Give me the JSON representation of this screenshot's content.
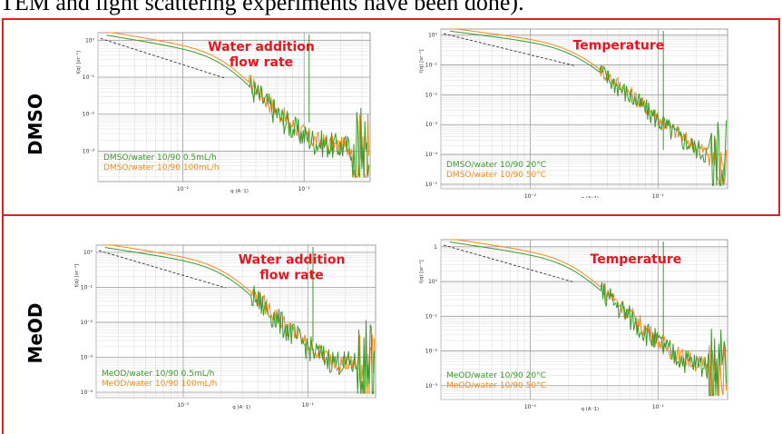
{
  "caption_fragment": "TEM and light scattering experiments have been done).",
  "rows": [
    {
      "label": "DMSO"
    },
    {
      "label": "MeOD"
    }
  ],
  "colors": {
    "green": "#3a9b2a",
    "orange": "#f28a1c",
    "red_text": "#e8141e",
    "frame_red": "#e02020"
  },
  "chart_data": [
    {
      "type": "line",
      "scale": "log-log",
      "annotation": [
        "Water addition",
        "flow rate"
      ],
      "ylabel": "I(q) [sr⁻¹]",
      "xlabel": "q (A⁻1)",
      "xticks": [
        "10⁻²",
        "10⁻¹"
      ],
      "yticks": [
        "10⁰",
        "10⁻¹",
        "10⁻²",
        "10⁻³"
      ],
      "xlim": [
        0.002,
        0.35
      ],
      "ylim": [
        0.00015,
        1.6
      ],
      "grid": true,
      "legend": "bottom-left",
      "series": [
        {
          "name": "DMSO/water 10/90 0.5mL/h",
          "color": "green"
        },
        {
          "name": "DMSO/water 10/90 100mL/h",
          "color": "orange"
        }
      ]
    },
    {
      "type": "line",
      "scale": "log-log",
      "annotation": [
        "Temperature"
      ],
      "ylabel": "I(q) [sr⁻¹]",
      "xlabel": "q (A⁻1)",
      "xticks": [
        "10⁻²",
        "10⁻¹"
      ],
      "yticks": [
        "10⁰",
        "10⁻¹",
        "10⁻²",
        "10⁻³",
        "10⁻⁴",
        "10⁻⁵"
      ],
      "xlim": [
        0.002,
        0.35
      ],
      "ylim": [
        7e-06,
        1.6
      ],
      "grid": true,
      "legend": "bottom-left",
      "series": [
        {
          "name": "DMSO/water 10/90 20°C",
          "color": "green"
        },
        {
          "name": "DMSO/water 10/90 50°C",
          "color": "orange"
        }
      ]
    },
    {
      "type": "line",
      "scale": "log-log",
      "annotation": [
        "Water addition",
        "flow rate"
      ],
      "ylabel": "I(q) [sr⁻¹]",
      "xlabel": "q (A⁻1)",
      "xticks": [
        "10⁻²",
        "10⁻¹"
      ],
      "yticks": [
        "10⁰",
        "10⁻¹",
        "10⁻²",
        "10⁻³",
        "10⁻⁴"
      ],
      "xlim": [
        0.002,
        0.35
      ],
      "ylim": [
        7e-05,
        1.6
      ],
      "grid": true,
      "legend": "bottom-left",
      "series": [
        {
          "name": "MeOD/water 10/90 0.5mL/h",
          "color": "green"
        },
        {
          "name": "MeOD/water 10/90 100mL/h",
          "color": "orange"
        }
      ]
    },
    {
      "type": "line",
      "scale": "log-log",
      "annotation": [
        "Temperature"
      ],
      "ylabel": "I(q) [sr⁻¹]",
      "xlabel": "q (A⁻1)",
      "xticks": [
        "10⁻²",
        "10⁻¹"
      ],
      "yticks": [
        "1",
        "10⁰",
        "10⁻¹",
        "10⁻²",
        "10⁻³",
        "10⁻⁴"
      ],
      "xlim": [
        0.002,
        0.35
      ],
      "ylim": [
        4e-05,
        1.6
      ],
      "grid": true,
      "legend": "bottom-left",
      "series": [
        {
          "name": "MeOD/water 10/90 20°C",
          "color": "green"
        },
        {
          "name": "MeOD/water 10/90 50°C",
          "color": "orange"
        }
      ]
    }
  ]
}
